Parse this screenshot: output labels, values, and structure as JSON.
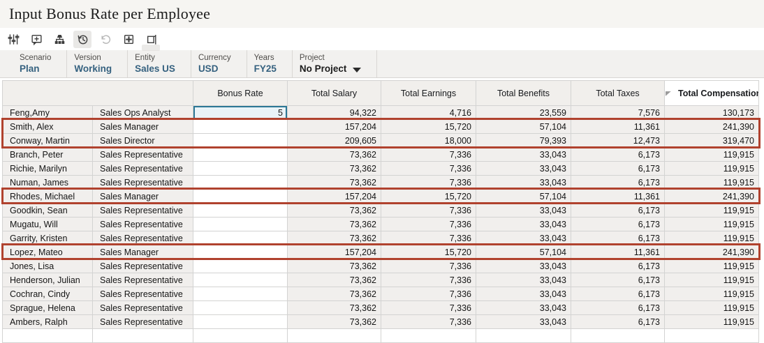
{
  "header": {
    "title": "Input Bonus Rate per Employee"
  },
  "toolbar": {
    "icons": [
      "adjust-icon",
      "comments-icon",
      "hierarchy-icon",
      "history-icon",
      "undo-icon",
      "grid-icon",
      "pane-icon"
    ],
    "active": "history-icon",
    "disabled": "undo-icon"
  },
  "pov": {
    "items": [
      {
        "label": "Scenario",
        "value": "Plan",
        "accent": true,
        "dropdown": false
      },
      {
        "label": "Version",
        "value": "Working",
        "accent": true,
        "dropdown": false
      },
      {
        "label": "Entity",
        "value": "Sales US",
        "accent": true,
        "dropdown": false
      },
      {
        "label": "Currency",
        "value": "USD",
        "accent": true,
        "dropdown": false
      },
      {
        "label": "Years",
        "value": "FY25",
        "accent": true,
        "dropdown": false
      },
      {
        "label": "Project",
        "value": "No Project",
        "accent": false,
        "dropdown": true
      }
    ]
  },
  "grid": {
    "value_columns": [
      "Bonus Rate",
      "Total Salary",
      "Total Earnings",
      "Total Benefits",
      "Total Taxes",
      "Total Compensation"
    ],
    "rows": [
      {
        "name": "Feng,Amy",
        "title": "Sales Ops Analyst",
        "bonus": "5",
        "selected": true,
        "salary": "94,322",
        "earnings": "4,716",
        "benefits": "23,559",
        "taxes": "7,576",
        "comp": "130,173"
      },
      {
        "name": "Smith, Alex",
        "title": "Sales Manager",
        "bonus": "",
        "selected": false,
        "salary": "157,204",
        "earnings": "15,720",
        "benefits": "57,104",
        "taxes": "11,361",
        "comp": "241,390"
      },
      {
        "name": "Conway, Martin",
        "title": "Sales Director",
        "bonus": "",
        "selected": false,
        "salary": "209,605",
        "earnings": "18,000",
        "benefits": "79,393",
        "taxes": "12,473",
        "comp": "319,470"
      },
      {
        "name": "Branch, Peter",
        "title": "Sales Representative",
        "bonus": "",
        "selected": false,
        "salary": "73,362",
        "earnings": "7,336",
        "benefits": "33,043",
        "taxes": "6,173",
        "comp": "119,915"
      },
      {
        "name": "Richie, Marilyn",
        "title": "Sales Representative",
        "bonus": "",
        "selected": false,
        "salary": "73,362",
        "earnings": "7,336",
        "benefits": "33,043",
        "taxes": "6,173",
        "comp": "119,915"
      },
      {
        "name": "Numan, James",
        "title": "Sales Representative",
        "bonus": "",
        "selected": false,
        "salary": "73,362",
        "earnings": "7,336",
        "benefits": "33,043",
        "taxes": "6,173",
        "comp": "119,915"
      },
      {
        "name": "Rhodes, Michael",
        "title": "Sales Manager",
        "bonus": "",
        "selected": false,
        "salary": "157,204",
        "earnings": "15,720",
        "benefits": "57,104",
        "taxes": "11,361",
        "comp": "241,390"
      },
      {
        "name": "Goodkin, Sean",
        "title": "Sales Representative",
        "bonus": "",
        "selected": false,
        "salary": "73,362",
        "earnings": "7,336",
        "benefits": "33,043",
        "taxes": "6,173",
        "comp": "119,915"
      },
      {
        "name": "Mugatu, Will",
        "title": "Sales Representative",
        "bonus": "",
        "selected": false,
        "salary": "73,362",
        "earnings": "7,336",
        "benefits": "33,043",
        "taxes": "6,173",
        "comp": "119,915"
      },
      {
        "name": "Garrity, Kristen",
        "title": "Sales Representative",
        "bonus": "",
        "selected": false,
        "salary": "73,362",
        "earnings": "7,336",
        "benefits": "33,043",
        "taxes": "6,173",
        "comp": "119,915"
      },
      {
        "name": "Lopez, Mateo",
        "title": "Sales Manager",
        "bonus": "",
        "selected": false,
        "salary": "157,204",
        "earnings": "15,720",
        "benefits": "57,104",
        "taxes": "11,361",
        "comp": "241,390"
      },
      {
        "name": "Jones, Lisa",
        "title": "Sales Representative",
        "bonus": "",
        "selected": false,
        "salary": "73,362",
        "earnings": "7,336",
        "benefits": "33,043",
        "taxes": "6,173",
        "comp": "119,915"
      },
      {
        "name": "Henderson, Julian",
        "title": "Sales Representative",
        "bonus": "",
        "selected": false,
        "salary": "73,362",
        "earnings": "7,336",
        "benefits": "33,043",
        "taxes": "6,173",
        "comp": "119,915"
      },
      {
        "name": "Cochran, Cindy",
        "title": "Sales Representative",
        "bonus": "",
        "selected": false,
        "salary": "73,362",
        "earnings": "7,336",
        "benefits": "33,043",
        "taxes": "6,173",
        "comp": "119,915"
      },
      {
        "name": "Sprague, Helena",
        "title": "Sales Representative",
        "bonus": "",
        "selected": false,
        "salary": "73,362",
        "earnings": "7,336",
        "benefits": "33,043",
        "taxes": "6,173",
        "comp": "119,915"
      },
      {
        "name": "Ambers, Ralph",
        "title": "Sales Representative",
        "bonus": "",
        "selected": false,
        "salary": "73,362",
        "earnings": "7,336",
        "benefits": "33,043",
        "taxes": "6,173",
        "comp": "119,915"
      }
    ],
    "outline_groups": [
      [
        1,
        2
      ],
      [
        6,
        6
      ],
      [
        10,
        10
      ]
    ]
  },
  "colors": {
    "accent_blue": "#35617f",
    "outline_red": "#b0422e",
    "selection_teal": "#2b7795"
  }
}
